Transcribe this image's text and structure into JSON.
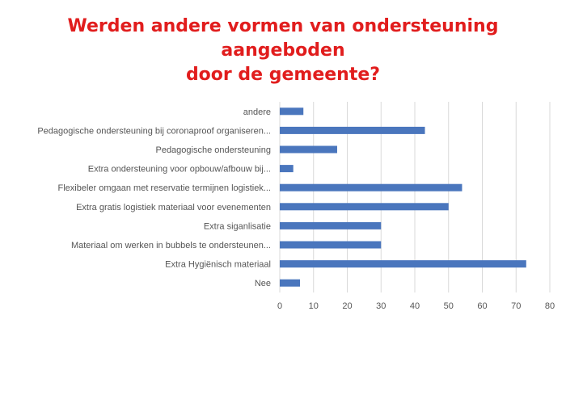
{
  "chart_data": {
    "type": "bar",
    "orientation": "horizontal",
    "title": "Werden andere vormen van ondersteuning aangeboden door de gemeente?",
    "title_line1": "Werden andere vormen van ondersteuning aangeboden",
    "title_line2": "door de gemeente?",
    "categories": [
      "andere",
      "Pedagogische ondersteuning bij coronaproof organiseren...",
      "Pedagogische ondersteuning",
      "Extra ondersteuning voor opbouw/afbouw bij...",
      "Flexibeler omgaan met reservatie termijnen logistiek...",
      "Extra gratis logistiek materiaal voor evenementen",
      "Extra siganlisatie",
      "Materiaal om werken in bubbels te ondersteunen...",
      "Extra Hygiënisch materiaal",
      "Nee"
    ],
    "values": [
      7,
      43,
      17,
      4,
      54,
      50,
      30,
      30,
      73,
      6
    ],
    "xlim": [
      0,
      80
    ],
    "xticks": [
      0,
      10,
      20,
      30,
      40,
      50,
      60,
      70,
      80
    ],
    "grid": true,
    "legend": "none",
    "colors": {
      "bar": "#4a76bd",
      "grid": "#d9d9d9",
      "title": "#e11d1d"
    }
  }
}
